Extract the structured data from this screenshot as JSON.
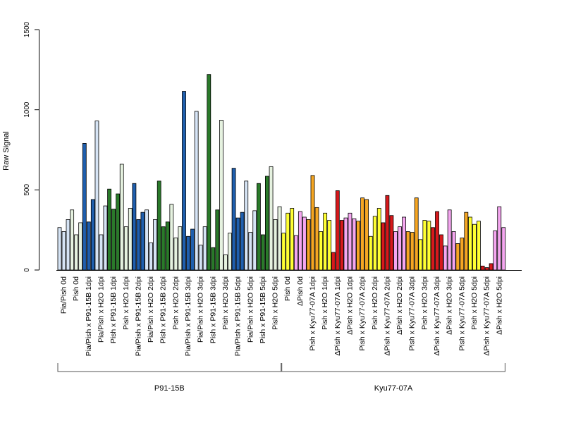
{
  "chart_data": {
    "type": "bar",
    "title": "",
    "ylabel": "Raw Signal",
    "xlabel": "",
    "ylim": [
      0,
      1500
    ],
    "yticks": [
      0,
      500,
      1000,
      1500
    ],
    "grid": false,
    "legend": "none",
    "bars_per_category": 3,
    "categories": [
      {
        "label": "Pia/Pish 0d",
        "color": "#d6e4f5",
        "values": [
          265,
          240,
          315
        ]
      },
      {
        "label": "Pish 0d",
        "color": "#e6f2e0",
        "values": [
          375,
          220,
          295
        ]
      },
      {
        "label": "Pia/Pish x P91-15B 1dpi",
        "color": "#1f5fae",
        "values": [
          790,
          300,
          440
        ]
      },
      {
        "label": "Pia/Pish x H2O 1dpi",
        "color": "#d6e4f5",
        "values": [
          930,
          220,
          400
        ]
      },
      {
        "label": "Pish x P91-15B 1dpi",
        "color": "#2a7a2a",
        "values": [
          505,
          380,
          475
        ]
      },
      {
        "label": "Pish x H2O 1dpi",
        "color": "#e6f2e0",
        "values": [
          660,
          270,
          385
        ]
      },
      {
        "label": "Pia/Pish x P91-15B 2dpi",
        "color": "#1f5fae",
        "values": [
          540,
          315,
          360
        ]
      },
      {
        "label": "Pia/Pish x H2O 2dpi",
        "color": "#d6e4f5",
        "values": [
          375,
          170,
          315
        ]
      },
      {
        "label": "Pish x P91-15B 2dpi",
        "color": "#2a7a2a",
        "values": [
          555,
          270,
          300
        ]
      },
      {
        "label": "Pish x H2O 2dpi",
        "color": "#e6f2e0",
        "values": [
          410,
          200,
          270
        ]
      },
      {
        "label": "Pia/Pish x P91-15B 3dpi",
        "color": "#1f5fae",
        "values": [
          1115,
          210,
          255
        ]
      },
      {
        "label": "Pia/Pish x H2O 3dpi",
        "color": "#d6e4f5",
        "values": [
          990,
          155,
          270
        ]
      },
      {
        "label": "Pish x P91-15B 3dpi",
        "color": "#2a7a2a",
        "values": [
          1220,
          140,
          375
        ]
      },
      {
        "label": "Pish x H2O 3dpi",
        "color": "#e6f2e0",
        "values": [
          935,
          95,
          230
        ]
      },
      {
        "label": "Pia/Pish x P91-15B 5dpi",
        "color": "#1f5fae",
        "values": [
          635,
          325,
          360
        ]
      },
      {
        "label": "Pia/Pish x H2O 5dpi",
        "color": "#d6e4f5",
        "values": [
          555,
          235,
          370
        ]
      },
      {
        "label": "Pish x P91-15B 5dpi",
        "color": "#2a7a2a",
        "values": [
          540,
          220,
          585
        ]
      },
      {
        "label": "Pish x H2O 5dpi",
        "color": "#e6f2e0",
        "values": [
          645,
          315,
          395
        ]
      },
      {
        "label": "Pish 0d",
        "color": "#ffff33",
        "values": [
          230,
          355,
          385
        ]
      },
      {
        "label": "ΔPish 0d",
        "color": "#f5a6f0",
        "values": [
          215,
          365,
          330
        ]
      },
      {
        "label": "Pish x Kyu77-07A 1dpi",
        "color": "#f5a623",
        "values": [
          315,
          590,
          390
        ]
      },
      {
        "label": "Pish x H2O 1dpi",
        "color": "#ffff33",
        "values": [
          240,
          355,
          310
        ]
      },
      {
        "label": "ΔPish x Kyu77-07A 1dpi",
        "color": "#d7191c",
        "values": [
          110,
          495,
          310
        ]
      },
      {
        "label": "ΔPish x H2O 1dpi",
        "color": "#f5a6f0",
        "values": [
          325,
          355,
          320
        ]
      },
      {
        "label": "Pish x Kyu77-07A 2dpi",
        "color": "#f5a623",
        "values": [
          305,
          450,
          440
        ]
      },
      {
        "label": "Pish x H2O 2dpi",
        "color": "#ffff33",
        "values": [
          210,
          335,
          385
        ]
      },
      {
        "label": "ΔPish x Kyu77-07A 2dpi",
        "color": "#d7191c",
        "values": [
          295,
          465,
          340
        ]
      },
      {
        "label": "ΔPish x H2O 2dpi",
        "color": "#f5a6f0",
        "values": [
          240,
          270,
          330
        ]
      },
      {
        "label": "Pish x Kyu77-07A 3dpi",
        "color": "#f5a623",
        "values": [
          240,
          235,
          450
        ]
      },
      {
        "label": "Pish x H2O 3dpi",
        "color": "#ffff33",
        "values": [
          190,
          310,
          305
        ]
      },
      {
        "label": "ΔPish x Kyu77-07A 3dpi",
        "color": "#d7191c",
        "values": [
          265,
          365,
          220
        ]
      },
      {
        "label": "ΔPish x H2O 3dpi",
        "color": "#f5a6f0",
        "values": [
          150,
          375,
          240
        ]
      },
      {
        "label": "Pish x Kyu77-07A 5dpi",
        "color": "#f5a623",
        "values": [
          165,
          200,
          360
        ]
      },
      {
        "label": "Pish x H2O 5dpi",
        "color": "#ffff33",
        "values": [
          330,
          285,
          305
        ]
      },
      {
        "label": "ΔPish x Kyu77-07A 5dpi",
        "color": "#d7191c",
        "values": [
          25,
          15,
          40
        ]
      },
      {
        "label": "ΔPish x H2O 5dpi",
        "color": "#f5a6f0",
        "values": [
          245,
          395,
          265
        ]
      }
    ],
    "groups": [
      {
        "label": "P91-15B",
        "first": 0,
        "last": 17
      },
      {
        "label": "Kyu77-07A",
        "first": 18,
        "last": 35
      }
    ]
  }
}
